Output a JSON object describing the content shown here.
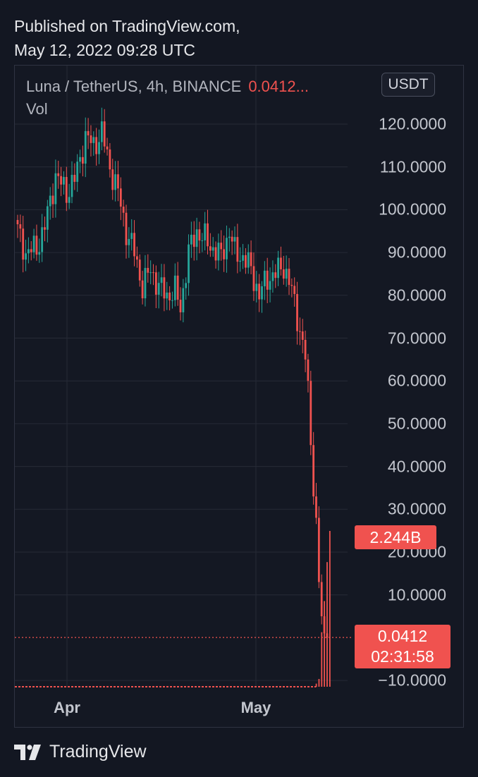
{
  "header": {
    "published_line1": "Published on TradingView.com,",
    "published_line2": "May 12, 2022 09:28 UTC"
  },
  "legend": {
    "symbol": "Luna / TetherUS, 4h, BINANCE",
    "price": "0.0412...",
    "vol_label": "Vol"
  },
  "currency_button": "USDT",
  "price_tag": {
    "price": "0.0412",
    "countdown": "02:31:58"
  },
  "volume_tag": "2.244B",
  "footer": {
    "brand": "TradingView"
  },
  "colors": {
    "up": "#26a69a",
    "down": "#f0524f",
    "background": "#131722",
    "grid": "#262a36"
  },
  "chart_data": {
    "type": "candlestick",
    "title": "Luna / TetherUS, 4h, BINANCE",
    "y_ticks": [
      "120.0000",
      "110.0000",
      "100.0000",
      "90.0000",
      "80.0000",
      "70.0000",
      "60.0000",
      "50.0000",
      "40.0000",
      "30.0000",
      "20.0000",
      "10.0000",
      "−10.0000"
    ],
    "y_tick_values": [
      120,
      110,
      100,
      90,
      80,
      70,
      60,
      50,
      40,
      30,
      20,
      10,
      -10
    ],
    "x_ticks": [
      "Apr",
      "May"
    ],
    "ylim": [
      -10,
      130
    ],
    "last_price": 0.0412,
    "grid": true,
    "close_path": [
      {
        "i": 0,
        "v": 95
      },
      {
        "i": 3,
        "v": 90
      },
      {
        "i": 7,
        "v": 91
      },
      {
        "i": 10,
        "v": 96
      },
      {
        "i": 14,
        "v": 108
      },
      {
        "i": 18,
        "v": 104
      },
      {
        "i": 21,
        "v": 107
      },
      {
        "i": 25,
        "v": 117
      },
      {
        "i": 28,
        "v": 115
      },
      {
        "i": 31,
        "v": 118
      },
      {
        "i": 34,
        "v": 110
      },
      {
        "i": 37,
        "v": 104
      },
      {
        "i": 40,
        "v": 95
      },
      {
        "i": 43,
        "v": 90
      },
      {
        "i": 46,
        "v": 82
      },
      {
        "i": 49,
        "v": 86
      },
      {
        "i": 52,
        "v": 82
      },
      {
        "i": 55,
        "v": 80
      },
      {
        "i": 58,
        "v": 81
      },
      {
        "i": 60,
        "v": 77
      },
      {
        "i": 63,
        "v": 90
      },
      {
        "i": 66,
        "v": 95
      },
      {
        "i": 69,
        "v": 93
      },
      {
        "i": 72,
        "v": 91
      },
      {
        "i": 75,
        "v": 89
      },
      {
        "i": 78,
        "v": 95
      },
      {
        "i": 80,
        "v": 90
      },
      {
        "i": 83,
        "v": 89
      },
      {
        "i": 86,
        "v": 86
      },
      {
        "i": 89,
        "v": 80
      },
      {
        "i": 92,
        "v": 84
      },
      {
        "i": 95,
        "v": 85
      },
      {
        "i": 98,
        "v": 87
      },
      {
        "i": 101,
        "v": 81
      },
      {
        "i": 104,
        "v": 72
      },
      {
        "i": 106,
        "v": 65
      },
      {
        "i": 107,
        "v": 60
      },
      {
        "i": 108,
        "v": 45
      },
      {
        "i": 109,
        "v": 33
      },
      {
        "i": 110,
        "v": 28
      },
      {
        "i": 111,
        "v": 13
      },
      {
        "i": 112,
        "v": 5
      },
      {
        "i": 113,
        "v": 1
      },
      {
        "i": 114,
        "v": 0.0412
      }
    ],
    "volume_bars": [
      {
        "i": 110,
        "v": 0.02
      },
      {
        "i": 111,
        "v": 0.05
      },
      {
        "i": 112,
        "v": 0.35
      },
      {
        "i": 113,
        "v": 0.55
      },
      {
        "i": 114,
        "v": 0.8
      },
      {
        "i": 115,
        "v": 1.0
      }
    ]
  }
}
